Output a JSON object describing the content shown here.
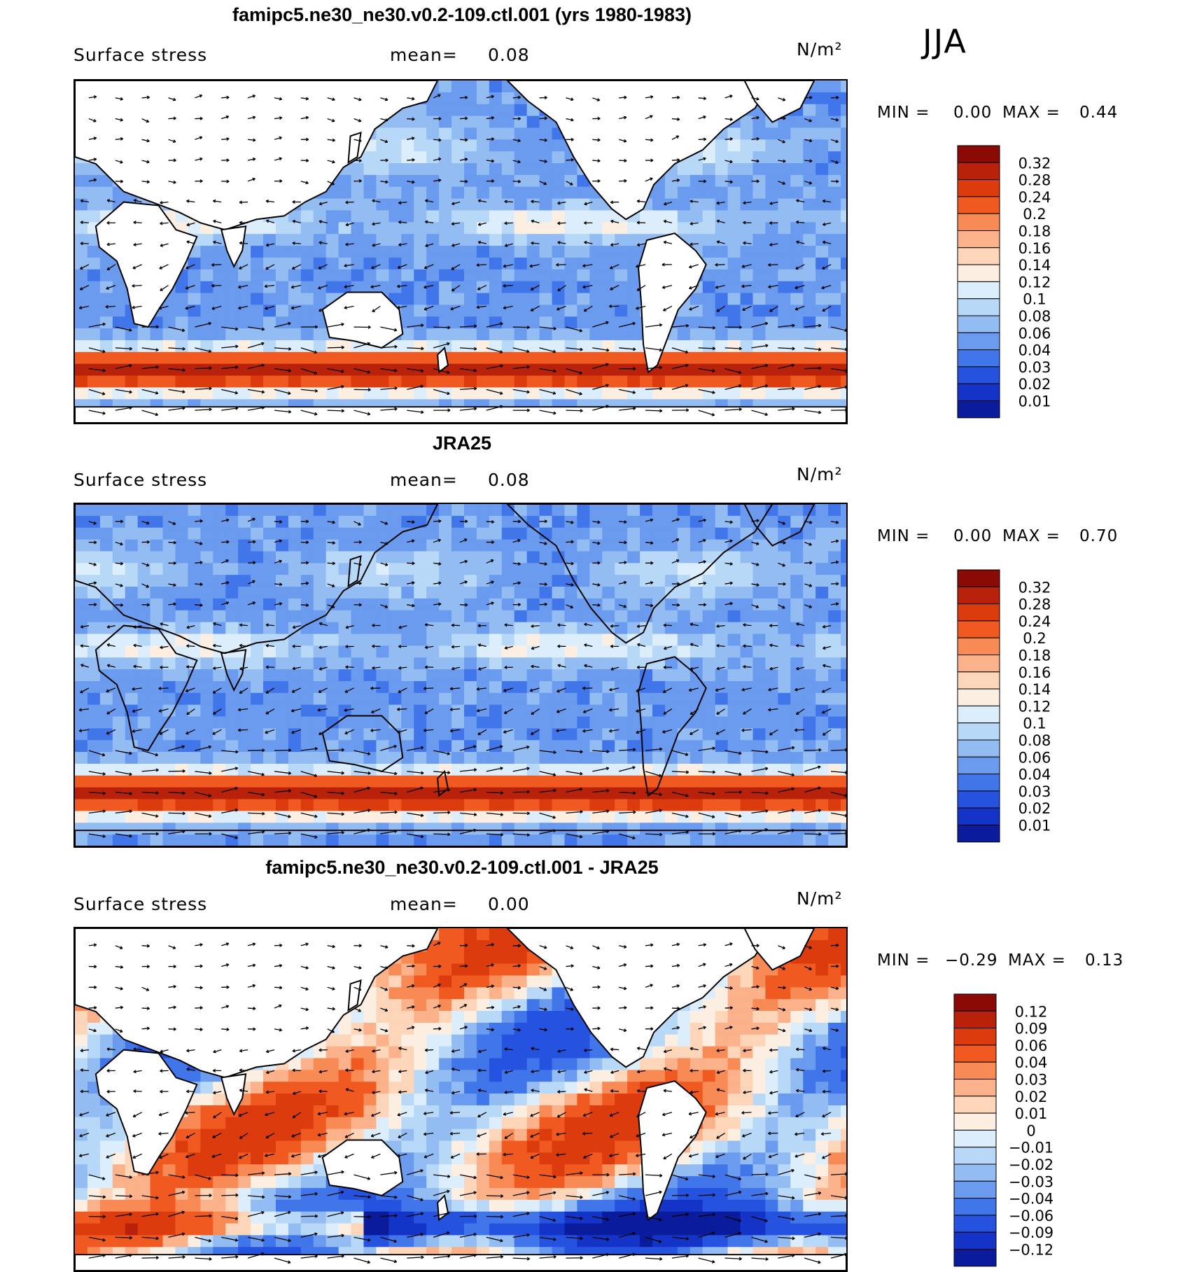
{
  "season": "JJA",
  "units_label": "N/m²",
  "chart_data": [
    {
      "type": "heatmap",
      "title": "famipc5.ne30_ne30.v0.2-109.ctl.001 (yrs 1980-1983)",
      "variable": "Surface stress",
      "mean_label": "mean=",
      "mean": "0.08",
      "units": "N/m²",
      "min_label": "MIN =",
      "min": "0.00",
      "max_label": "MAX =",
      "max": "0.44",
      "colorbar": {
        "levels": [
          "0.32",
          "0.28",
          "0.24",
          "0.2",
          "0.18",
          "0.16",
          "0.14",
          "0.12",
          "0.1",
          "0.08",
          "0.06",
          "0.04",
          "0.03",
          "0.02",
          "0.01"
        ],
        "colors": [
          "#8b0a05",
          "#b8210a",
          "#dc3b0e",
          "#f05a20",
          "#f88a56",
          "#fbb189",
          "#fdd5b9",
          "#fdeee2",
          "#dceefc",
          "#b8d8f7",
          "#93bcf3",
          "#6a9bee",
          "#4076ea",
          "#2553e0",
          "#1334c7",
          "#0a1c9c"
        ]
      },
      "field": "sequential",
      "seed": 11
    },
    {
      "type": "heatmap",
      "title": "JRA25",
      "variable": "Surface stress",
      "mean_label": "mean=",
      "mean": "0.08",
      "units": "N/m²",
      "min_label": "MIN =",
      "min": "0.00",
      "max_label": "MAX =",
      "max": "0.70",
      "colorbar": {
        "levels": [
          "0.32",
          "0.28",
          "0.24",
          "0.2",
          "0.18",
          "0.16",
          "0.14",
          "0.12",
          "0.1",
          "0.08",
          "0.06",
          "0.04",
          "0.03",
          "0.02",
          "0.01"
        ],
        "colors": [
          "#8b0a05",
          "#b8210a",
          "#dc3b0e",
          "#f05a20",
          "#f88a56",
          "#fbb189",
          "#fdd5b9",
          "#fdeee2",
          "#dceefc",
          "#b8d8f7",
          "#93bcf3",
          "#6a9bee",
          "#4076ea",
          "#2553e0",
          "#1334c7",
          "#0a1c9c"
        ]
      },
      "field": "sequential",
      "seed": 23
    },
    {
      "type": "heatmap",
      "title": "famipc5.ne30_ne30.v0.2-109.ctl.001 - JRA25",
      "variable": "Surface stress",
      "mean_label": "mean=",
      "mean": "0.00",
      "units": "N/m²",
      "min_label": "MIN =",
      "min": "−0.29",
      "max_label": "MAX =",
      "max": "0.13",
      "colorbar": {
        "levels": [
          "0.12",
          "0.09",
          "0.06",
          "0.04",
          "0.03",
          "0.02",
          "0.01",
          "0",
          "−0.01",
          "−0.02",
          "−0.03",
          "−0.04",
          "−0.06",
          "−0.09",
          "−0.12"
        ],
        "colors": [
          "#8b0a05",
          "#b8210a",
          "#dc3b0e",
          "#f05a20",
          "#f88a56",
          "#fbb189",
          "#fdd5b9",
          "#fdeee2",
          "#dceefc",
          "#b8d8f7",
          "#93bcf3",
          "#6a9bee",
          "#4076ea",
          "#2553e0",
          "#1334c7",
          "#0a1c9c"
        ]
      },
      "field": "diverging",
      "seed": 37
    }
  ]
}
